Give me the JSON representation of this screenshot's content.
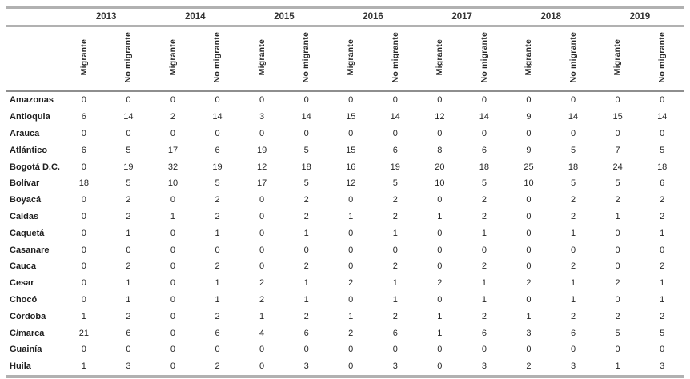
{
  "table": {
    "years": [
      "2013",
      "2014",
      "2015",
      "2016",
      "2017",
      "2018",
      "2019"
    ],
    "subheaders": [
      "Migrante",
      "No migrante"
    ],
    "rows": [
      {
        "label": "Amazonas",
        "values": [
          0,
          0,
          0,
          0,
          0,
          0,
          0,
          0,
          0,
          0,
          0,
          0,
          0,
          0
        ]
      },
      {
        "label": "Antioquia",
        "values": [
          6,
          14,
          2,
          14,
          3,
          14,
          15,
          14,
          12,
          14,
          9,
          14,
          15,
          14
        ]
      },
      {
        "label": "Arauca",
        "values": [
          0,
          0,
          0,
          0,
          0,
          0,
          0,
          0,
          0,
          0,
          0,
          0,
          0,
          0
        ]
      },
      {
        "label": "Atlántico",
        "values": [
          6,
          5,
          17,
          6,
          19,
          5,
          15,
          6,
          8,
          6,
          9,
          5,
          7,
          5
        ]
      },
      {
        "label": "Bogotá D.C.",
        "values": [
          0,
          19,
          32,
          19,
          12,
          18,
          16,
          19,
          20,
          18,
          25,
          18,
          24,
          18
        ]
      },
      {
        "label": "Bolívar",
        "values": [
          18,
          5,
          10,
          5,
          17,
          5,
          12,
          5,
          10,
          5,
          10,
          5,
          5,
          6
        ]
      },
      {
        "label": "Boyacá",
        "values": [
          0,
          2,
          0,
          2,
          0,
          2,
          0,
          2,
          0,
          2,
          0,
          2,
          2,
          2
        ]
      },
      {
        "label": "Caldas",
        "values": [
          0,
          2,
          1,
          2,
          0,
          2,
          1,
          2,
          1,
          2,
          0,
          2,
          1,
          2
        ]
      },
      {
        "label": "Caquetá",
        "values": [
          0,
          1,
          0,
          1,
          0,
          1,
          0,
          1,
          0,
          1,
          0,
          1,
          0,
          1
        ]
      },
      {
        "label": "Casanare",
        "values": [
          0,
          0,
          0,
          0,
          0,
          0,
          0,
          0,
          0,
          0,
          0,
          0,
          0,
          0
        ]
      },
      {
        "label": "Cauca",
        "values": [
          0,
          2,
          0,
          2,
          0,
          2,
          0,
          2,
          0,
          2,
          0,
          2,
          0,
          2
        ]
      },
      {
        "label": "Cesar",
        "values": [
          0,
          1,
          0,
          1,
          2,
          1,
          2,
          1,
          2,
          1,
          2,
          1,
          2,
          1
        ]
      },
      {
        "label": "Chocó",
        "values": [
          0,
          1,
          0,
          1,
          2,
          1,
          0,
          1,
          0,
          1,
          0,
          1,
          0,
          1
        ]
      },
      {
        "label": "Córdoba",
        "values": [
          1,
          2,
          0,
          2,
          1,
          2,
          1,
          2,
          1,
          2,
          1,
          2,
          2,
          2
        ]
      },
      {
        "label": "C/marca",
        "values": [
          21,
          6,
          0,
          6,
          4,
          6,
          2,
          6,
          1,
          6,
          3,
          6,
          5,
          5
        ]
      },
      {
        "label": "Guainía",
        "values": [
          0,
          0,
          0,
          0,
          0,
          0,
          0,
          0,
          0,
          0,
          0,
          0,
          0,
          0
        ]
      },
      {
        "label": "Huila",
        "values": [
          1,
          3,
          0,
          2,
          0,
          3,
          0,
          3,
          0,
          3,
          2,
          3,
          1,
          3
        ]
      }
    ]
  }
}
